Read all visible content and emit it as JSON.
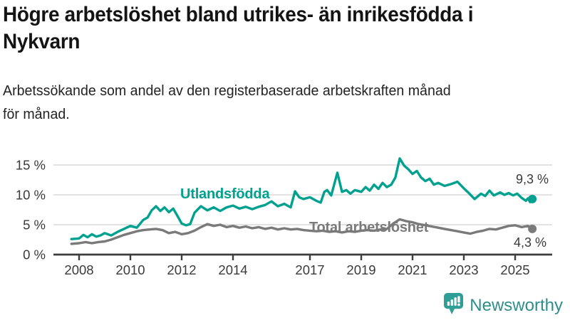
{
  "header": {
    "title_line1": "Högre arbetslöshet bland utrikes- än inrikesfödda i",
    "title_line2": "Nykvarn",
    "subtitle_line1": "Arbetssökande som andel av den registerbaserade arbetskraften månad",
    "subtitle_line2": "för månad."
  },
  "chart_data": {
    "type": "line",
    "title": "Högre arbetslöshet bland utrikes- än inrikesfödda i Nykvarn",
    "subtitle": "Arbetssökande som andel av den registerbaserade arbetskraften månad för månad.",
    "xlabel": "",
    "ylabel": "",
    "grid": true,
    "grid_color": "#d9d9d9",
    "axis_color": "#3d3d3d",
    "tick_text_color": "#3a3a3a",
    "ylim": [
      0,
      17
    ],
    "xlim": [
      2007.7,
      2026.4
    ],
    "y_ticks": [
      {
        "value": 0,
        "label": "0 %"
      },
      {
        "value": 5,
        "label": "5 %"
      },
      {
        "value": 10,
        "label": "10 %"
      },
      {
        "value": 15,
        "label": "15 %"
      }
    ],
    "x_ticks": [
      {
        "year": 2008,
        "label": "2008"
      },
      {
        "year": 2010,
        "label": "2010"
      },
      {
        "year": 2012,
        "label": "2012"
      },
      {
        "year": 2014,
        "label": "2014"
      },
      {
        "year": 2017,
        "label": "2017"
      },
      {
        "year": 2019,
        "label": "2019"
      },
      {
        "year": 2021,
        "label": "2021"
      },
      {
        "year": 2023,
        "label": "2023"
      },
      {
        "year": 2025,
        "label": "2025"
      }
    ],
    "series": [
      {
        "name": "Utlandsfödda",
        "color": "#00a18f",
        "end_label": "9,3 %",
        "end_value": 9.3,
        "x": [
          2007.7,
          2008.0,
          2008.17,
          2008.33,
          2008.5,
          2008.67,
          2008.83,
          2009.0,
          2009.25,
          2009.5,
          2009.75,
          2010.0,
          2010.25,
          2010.5,
          2010.67,
          2010.83,
          2011.0,
          2011.17,
          2011.33,
          2011.5,
          2011.67,
          2011.83,
          2012.0,
          2012.17,
          2012.33,
          2012.5,
          2012.75,
          2013.0,
          2013.25,
          2013.5,
          2013.75,
          2014.0,
          2014.25,
          2014.5,
          2014.75,
          2015.0,
          2015.25,
          2015.5,
          2015.75,
          2016.0,
          2016.25,
          2016.42,
          2016.58,
          2016.75,
          2017.0,
          2017.25,
          2017.42,
          2017.56,
          2017.67,
          2017.83,
          2018.07,
          2018.25,
          2018.42,
          2018.58,
          2018.75,
          2019.0,
          2019.17,
          2019.33,
          2019.5,
          2019.67,
          2019.83,
          2020.0,
          2020.17,
          2020.33,
          2020.5,
          2020.67,
          2020.83,
          2021.0,
          2021.17,
          2021.33,
          2021.5,
          2021.67,
          2021.83,
          2022.0,
          2022.25,
          2022.5,
          2022.75,
          2023.0,
          2023.17,
          2023.42,
          2023.67,
          2023.83,
          2024.0,
          2024.17,
          2024.42,
          2024.58,
          2024.75,
          2024.92,
          2025.08,
          2025.25,
          2025.42,
          2025.5,
          2025.58,
          2025.67
        ],
        "y": [
          2.6,
          2.7,
          3.3,
          2.9,
          3.4,
          3.0,
          3.2,
          3.6,
          3.2,
          3.8,
          4.3,
          4.8,
          4.5,
          5.8,
          6.2,
          7.4,
          8.1,
          7.3,
          7.9,
          7.1,
          7.7,
          6.5,
          5.2,
          4.9,
          5.1,
          7.0,
          8.1,
          7.4,
          7.9,
          7.3,
          7.9,
          8.2,
          7.7,
          8.0,
          7.6,
          8.0,
          8.3,
          8.9,
          8.1,
          8.5,
          7.9,
          10.6,
          9.6,
          9.3,
          9.6,
          9.0,
          8.7,
          10.5,
          10.8,
          9.9,
          13.7,
          10.5,
          10.8,
          10.2,
          10.8,
          10.5,
          11.3,
          10.7,
          11.7,
          11.0,
          12.0,
          11.3,
          11.7,
          12.9,
          16.1,
          14.9,
          14.3,
          13.5,
          14.0,
          12.9,
          12.3,
          12.7,
          11.7,
          12.0,
          11.5,
          11.8,
          12.2,
          11.1,
          10.4,
          9.3,
          10.2,
          9.8,
          10.7,
          9.9,
          10.4,
          10.0,
          10.3,
          9.9,
          10.2,
          9.5,
          9.0,
          9.4,
          8.8,
          9.3
        ]
      },
      {
        "name": "Total arbetslöshet",
        "color": "#7a7a7a",
        "end_label": "4,3 %",
        "end_value": 4.3,
        "x": [
          2007.7,
          2008.0,
          2008.25,
          2008.5,
          2008.75,
          2009.0,
          2009.25,
          2009.5,
          2009.75,
          2010.0,
          2010.25,
          2010.5,
          2010.75,
          2011.0,
          2011.25,
          2011.5,
          2011.75,
          2012.0,
          2012.25,
          2012.5,
          2012.75,
          2013.0,
          2013.25,
          2013.5,
          2013.75,
          2014.0,
          2014.25,
          2014.5,
          2014.75,
          2015.0,
          2015.25,
          2015.5,
          2015.75,
          2016.0,
          2016.25,
          2016.5,
          2016.75,
          2017.0,
          2017.25,
          2017.5,
          2017.75,
          2018.0,
          2018.25,
          2018.5,
          2018.75,
          2019.0,
          2019.25,
          2019.5,
          2019.75,
          2020.0,
          2020.25,
          2020.5,
          2020.75,
          2021.0,
          2021.25,
          2021.5,
          2021.75,
          2022.0,
          2022.25,
          2022.5,
          2022.75,
          2023.0,
          2023.25,
          2023.5,
          2023.75,
          2024.0,
          2024.25,
          2024.5,
          2024.75,
          2025.0,
          2025.25,
          2025.5,
          2025.67
        ],
        "y": [
          1.8,
          1.9,
          2.1,
          1.9,
          2.1,
          2.2,
          2.5,
          2.9,
          3.3,
          3.6,
          3.9,
          4.1,
          4.2,
          4.3,
          4.1,
          3.6,
          3.8,
          3.4,
          3.6,
          4.0,
          4.6,
          5.1,
          4.8,
          5.0,
          4.6,
          4.8,
          4.5,
          4.7,
          4.4,
          4.6,
          4.3,
          4.5,
          4.2,
          4.4,
          4.2,
          4.3,
          4.1,
          4.0,
          3.9,
          4.0,
          3.8,
          3.9,
          3.7,
          3.9,
          3.8,
          4.0,
          4.1,
          4.0,
          4.2,
          4.3,
          5.2,
          5.9,
          5.6,
          5.4,
          5.1,
          4.9,
          4.7,
          4.5,
          4.3,
          4.1,
          3.9,
          3.7,
          3.5,
          3.8,
          4.0,
          4.3,
          4.2,
          4.5,
          4.8,
          4.9,
          4.6,
          4.8,
          4.3
        ]
      }
    ],
    "legend_position": "inline-labels"
  },
  "footer": {
    "brand": "Newsworthy",
    "brand_color": "#2f8f8b",
    "logo_icon_color": "#2f9e97",
    "logo_icon": "bar-chart-speech-bubble"
  }
}
